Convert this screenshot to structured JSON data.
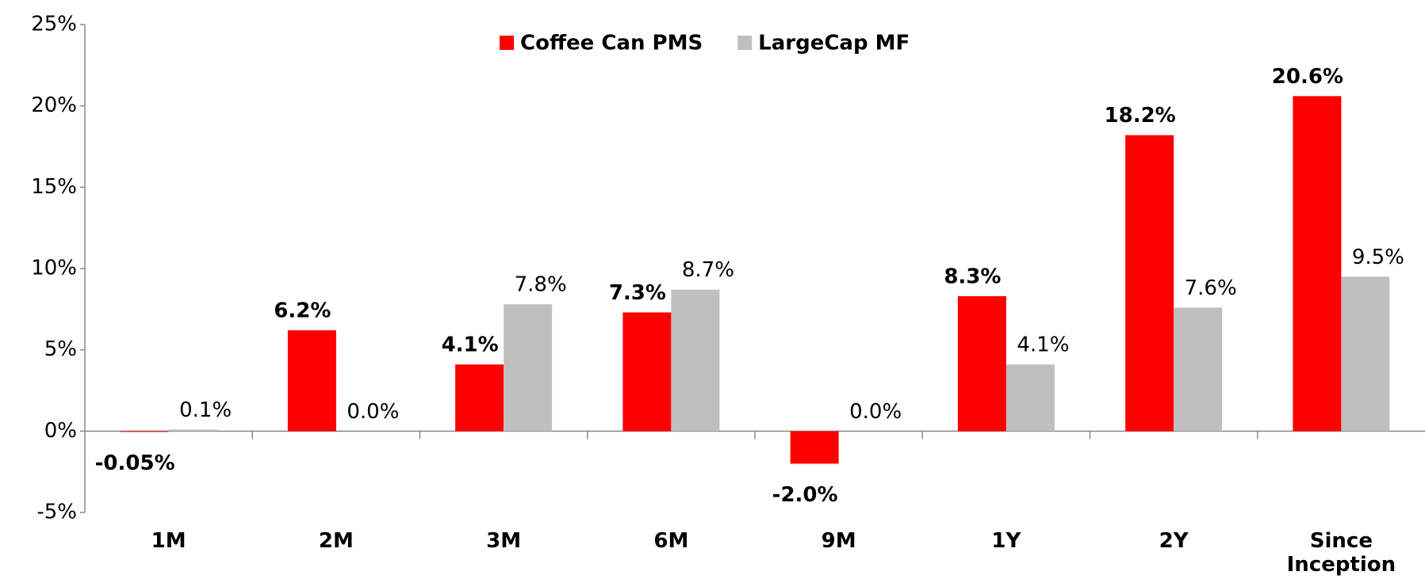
{
  "chart_data": {
    "type": "bar",
    "categories": [
      "1M",
      "2M",
      "3M",
      "6M",
      "9M",
      "1Y",
      "2Y",
      "Since Inception"
    ],
    "series": [
      {
        "name": "Coffee Can PMS",
        "color": "#ff0000",
        "values": [
          -0.05,
          6.2,
          4.1,
          7.3,
          -2.0,
          8.3,
          18.2,
          20.6
        ],
        "value_labels": [
          "-0.05%",
          "6.2%",
          "4.1%",
          "7.3%",
          "-2.0%",
          "8.3%",
          "18.2%",
          "20.6%"
        ]
      },
      {
        "name": "LargeCap MF",
        "color": "#bfbfbf",
        "values": [
          0.1,
          0.0,
          7.8,
          8.7,
          0.0,
          4.1,
          7.6,
          9.5
        ],
        "value_labels": [
          "0.1%",
          "0.0%",
          "7.8%",
          "8.7%",
          "0.0%",
          "4.1%",
          "7.6%",
          "9.5%"
        ]
      }
    ],
    "ylim": [
      -5,
      25
    ],
    "yticks": [
      {
        "value": -5,
        "label": "-5%"
      },
      {
        "value": 0,
        "label": "0%"
      },
      {
        "value": 5,
        "label": "5%"
      },
      {
        "value": 10,
        "label": "10%"
      },
      {
        "value": 15,
        "label": "15%"
      },
      {
        "value": 20,
        "label": "20%"
      },
      {
        "value": 25,
        "label": "25%"
      }
    ],
    "legend": "top",
    "grid": false
  }
}
